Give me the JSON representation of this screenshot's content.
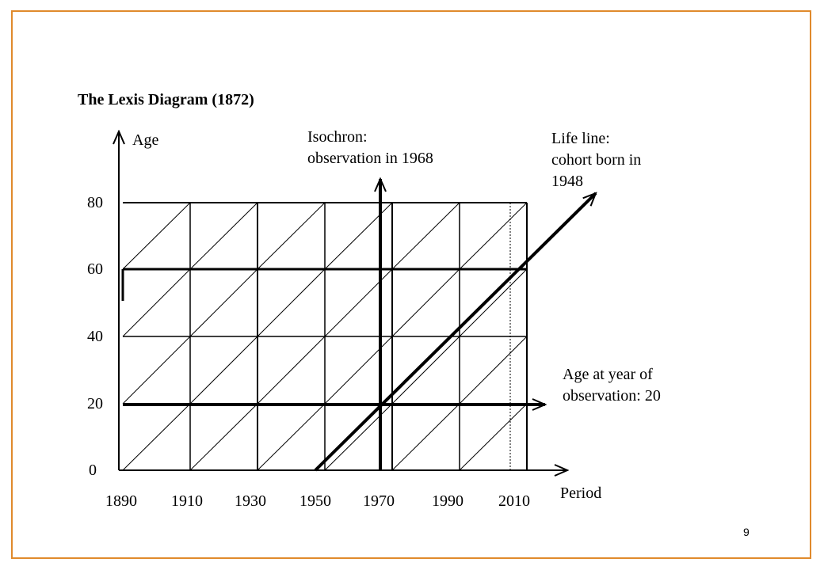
{
  "title": "The Lexis Diagram (1872)",
  "page_number": "9",
  "axes": {
    "y_label": "Age",
    "x_label": "Period",
    "y_ticks": [
      "80",
      "60",
      "40",
      "20",
      "0"
    ],
    "x_ticks": [
      "1890",
      "1910",
      "1930",
      "1950",
      "1970",
      "1990",
      "2010"
    ]
  },
  "annotations": {
    "isochron": [
      "Isochron:",
      "observation in 1968"
    ],
    "life_line": [
      "Life line:",
      "cohort born in",
      "1948"
    ],
    "age_line": [
      "Age at year of",
      "observation: 20"
    ]
  },
  "colors": {
    "frame": "#e08a2c",
    "ink": "#000000"
  }
}
